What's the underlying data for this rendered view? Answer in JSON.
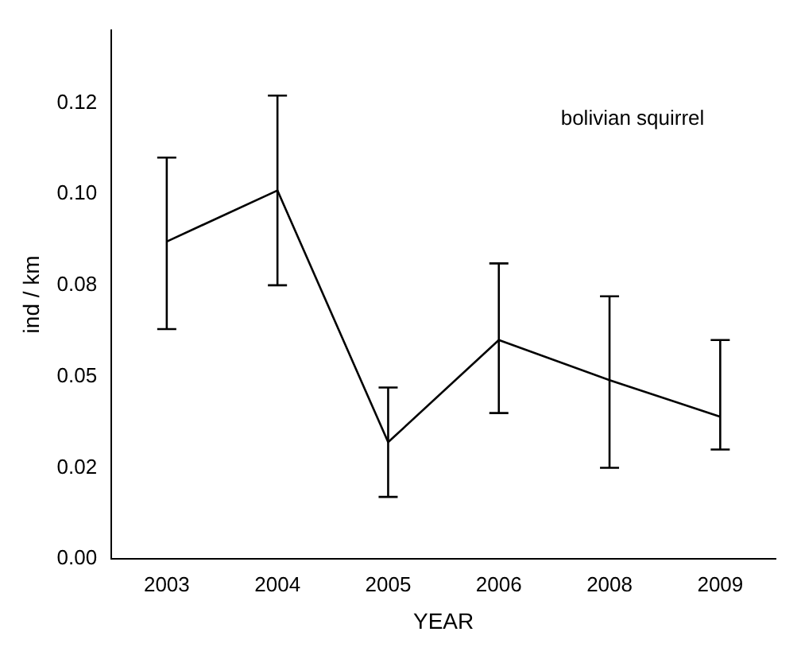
{
  "chart_data": {
    "type": "line",
    "xlabel": "YEAR",
    "ylabel": "ind / km",
    "annotations": [
      "bolivian squirrel"
    ],
    "categories": [
      "2003",
      "2004",
      "2005",
      "2006",
      "2008",
      "2009"
    ],
    "series": [
      {
        "color": "#000000",
        "values": [
          0.087,
          0.101,
          0.032,
          0.06,
          0.049,
          0.039
        ],
        "errors": [
          [
            0.063,
            0.11
          ],
          [
            0.075,
            0.127
          ],
          [
            0.017,
            0.047
          ],
          [
            0.04,
            0.081
          ],
          [
            0.025,
            0.072
          ],
          [
            0.03,
            0.06
          ]
        ]
      }
    ],
    "ylim": [
      0,
      0.145
    ],
    "yticks": [
      {
        "value": 0,
        "label": "0.00"
      },
      {
        "value": 0.025,
        "label": "0.02"
      },
      {
        "value": 0.05,
        "label": "0.05"
      },
      {
        "value": 0.075,
        "label": "0.08"
      },
      {
        "value": 0.1,
        "label": "0.10"
      },
      {
        "value": 0.125,
        "label": "0.12"
      }
    ],
    "grid": false,
    "legend": false,
    "marker": "none",
    "line_style": "solid"
  }
}
